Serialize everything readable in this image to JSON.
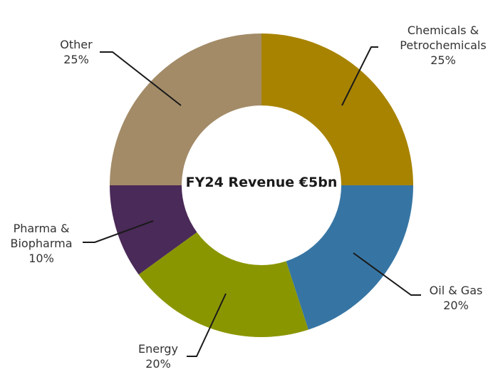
{
  "chart_data": {
    "type": "pie",
    "style": "donut",
    "center_label": "FY24 Revenue €5bn",
    "slices": [
      {
        "label_lines": [
          "Chemicals &",
          "Petrochemicals"
        ],
        "pct_label": "25%",
        "value": 25,
        "color": "#A88300"
      },
      {
        "label_lines": [
          "Oil & Gas"
        ],
        "pct_label": "20%",
        "value": 20,
        "color": "#3675A3"
      },
      {
        "label_lines": [
          "Energy"
        ],
        "pct_label": "20%",
        "value": 20,
        "color": "#8A9600"
      },
      {
        "label_lines": [
          "Pharma &",
          "Biopharma"
        ],
        "pct_label": "10%",
        "value": 10,
        "color": "#4A2A58"
      },
      {
        "label_lines": [
          "Other"
        ],
        "pct_label": "25%",
        "value": 25,
        "color": "#A38B68"
      }
    ]
  }
}
